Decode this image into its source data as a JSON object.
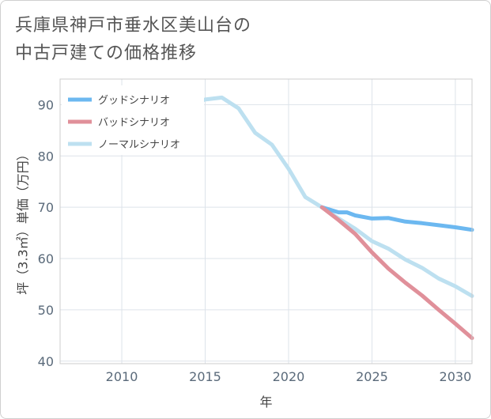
{
  "title_lines": [
    "兵庫県神戸市垂水区美山台の",
    "中古戸建ての価格推移"
  ],
  "chart_data": {
    "type": "line",
    "xlabel": "年",
    "ylabel": "坪（3.3㎡）単価（万円）",
    "xlim": [
      2006.3,
      2031
    ],
    "ylim": [
      39.5,
      95
    ],
    "x_ticks": [
      2010,
      2015,
      2020,
      2025,
      2030
    ],
    "y_ticks": [
      40,
      50,
      60,
      70,
      80,
      90
    ],
    "grid": true,
    "legend_position": "top-left",
    "series": [
      {
        "name": "グッドシナリオ",
        "color": "#6cb8f0",
        "points": [
          [
            2022,
            70.0
          ],
          [
            2023,
            69.0
          ],
          [
            2023.5,
            69.0
          ],
          [
            2024,
            68.4
          ],
          [
            2025,
            67.8
          ],
          [
            2026,
            67.9
          ],
          [
            2027,
            67.2
          ],
          [
            2028,
            66.9
          ],
          [
            2029,
            66.5
          ],
          [
            2030,
            66.1
          ],
          [
            2031,
            65.6
          ]
        ]
      },
      {
        "name": "バッドシナリオ",
        "color": "#e0909a",
        "points": [
          [
            2022,
            70.0
          ],
          [
            2023,
            67.5
          ],
          [
            2024,
            64.8
          ],
          [
            2025,
            61.2
          ],
          [
            2026,
            58.0
          ],
          [
            2027,
            55.3
          ],
          [
            2028,
            52.8
          ],
          [
            2029,
            50.0
          ],
          [
            2030,
            47.3
          ],
          [
            2031,
            44.5
          ]
        ]
      },
      {
        "name": "ノーマルシナリオ",
        "color": "#bde0f0",
        "points": [
          [
            2008,
            83.3
          ],
          [
            2009,
            83.8
          ],
          [
            2010,
            83.5
          ],
          [
            2011,
            85.8
          ],
          [
            2012,
            86.8
          ],
          [
            2013,
            88.0
          ],
          [
            2014,
            90.0
          ],
          [
            2015,
            91.0
          ],
          [
            2016,
            91.4
          ],
          [
            2017,
            89.3
          ],
          [
            2018,
            84.5
          ],
          [
            2019,
            82.2
          ],
          [
            2020,
            77.5
          ],
          [
            2021,
            72.0
          ],
          [
            2022,
            70.0
          ],
          [
            2023,
            67.8
          ],
          [
            2024,
            65.8
          ],
          [
            2025,
            63.4
          ],
          [
            2026,
            61.9
          ],
          [
            2027,
            59.8
          ],
          [
            2028,
            58.2
          ],
          [
            2029,
            56.1
          ],
          [
            2030,
            54.6
          ],
          [
            2031,
            52.7
          ]
        ]
      }
    ]
  }
}
